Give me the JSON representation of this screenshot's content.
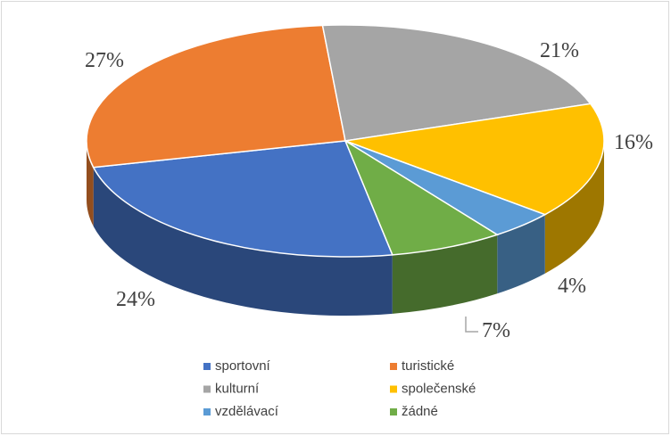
{
  "chart_data": {
    "type": "pie",
    "categories": [
      "sportovní",
      "turistické",
      "kulturní",
      "společenské",
      "vzdělávací",
      "žádné"
    ],
    "values": [
      24,
      27,
      21,
      16,
      4,
      7
    ],
    "value_labels": [
      "24%",
      "27%",
      "21%",
      "16%",
      "4%",
      "7%"
    ],
    "colors": [
      "#4472c4",
      "#ed7d31",
      "#a5a5a5",
      "#ffc000",
      "#5b9bd5",
      "#70ad47"
    ],
    "legend": "bottom"
  }
}
